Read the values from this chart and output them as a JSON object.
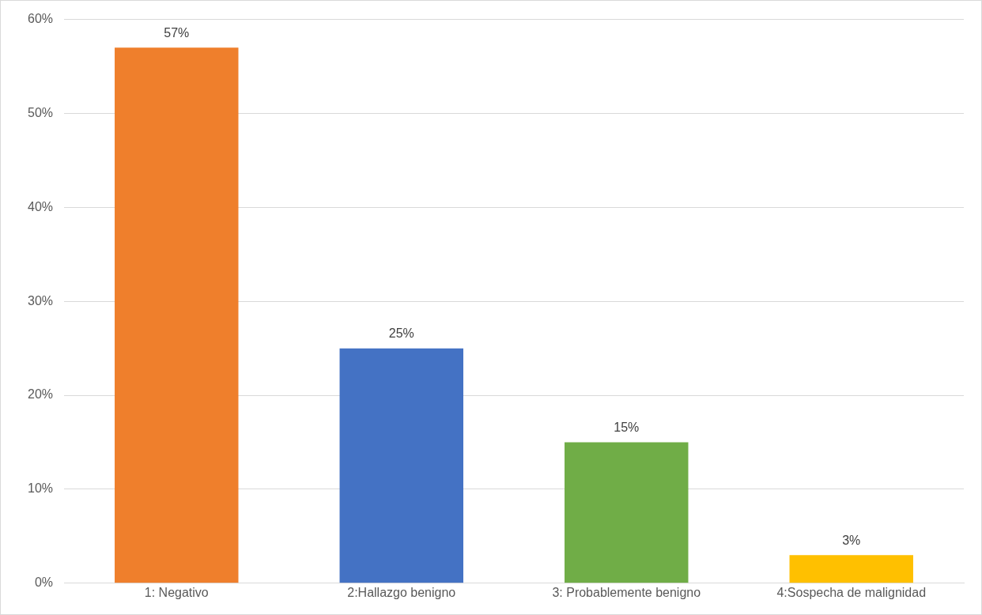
{
  "chart_data": {
    "type": "bar",
    "categories": [
      "1: Negativo",
      "2:Hallazgo benigno",
      "3: Probablemente benigno",
      "4:Sospecha de malignidad"
    ],
    "values": [
      57,
      25,
      15,
      3
    ],
    "colors": [
      "#ef7f2c",
      "#4472c4",
      "#70ad47",
      "#ffc000"
    ],
    "value_labels": [
      "57%",
      "25%",
      "15%",
      "3%"
    ],
    "ylim": [
      0,
      60
    ],
    "yticks": [
      {
        "value": 0,
        "label": "0%"
      },
      {
        "value": 10,
        "label": "10%"
      },
      {
        "value": 20,
        "label": "20%"
      },
      {
        "value": 30,
        "label": "30%"
      },
      {
        "value": 40,
        "label": "40%"
      },
      {
        "value": 50,
        "label": "50%"
      },
      {
        "value": 60,
        "label": "60%"
      }
    ],
    "grid": "y",
    "legend": false
  }
}
